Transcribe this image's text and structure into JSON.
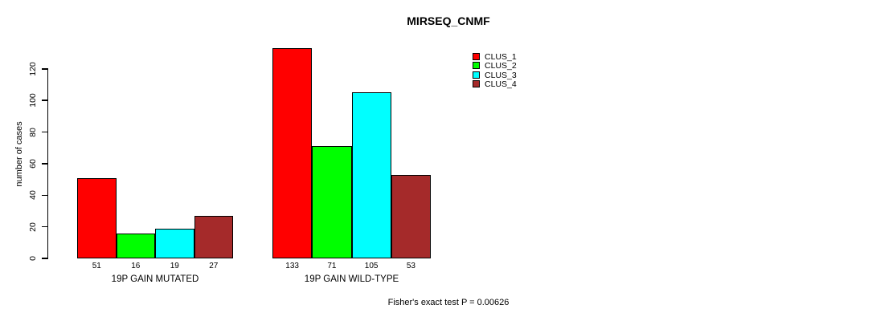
{
  "header": {
    "title": "MIRSEQ_CNMF"
  },
  "chart_data": {
    "type": "bar",
    "title": "MIRSEQ_CNMF",
    "xlabel": "",
    "ylabel": "number of cases",
    "ylim": [
      0,
      140
    ],
    "yticks": [
      0,
      20,
      40,
      60,
      80,
      100,
      120
    ],
    "grid": false,
    "legend_position": "top-right",
    "categories": [
      "19P GAIN MUTATED",
      "19P GAIN WILD-TYPE"
    ],
    "series": [
      {
        "name": "CLUS_1",
        "color": "#FF0000",
        "values": [
          51,
          133
        ]
      },
      {
        "name": "CLUS_2",
        "color": "#00FF00",
        "values": [
          16,
          71
        ]
      },
      {
        "name": "CLUS_3",
        "color": "#00FFFF",
        "values": [
          19,
          105
        ]
      },
      {
        "name": "CLUS_4",
        "color": "#A52A2A",
        "values": [
          27,
          53
        ]
      }
    ],
    "bar_value_labels": {
      "19P GAIN MUTATED": [
        51,
        16,
        19,
        27
      ],
      "19P GAIN WILD-TYPE": [
        133,
        71,
        105,
        53
      ]
    },
    "annotation": "Fisher's exact test P = 0.00626"
  },
  "colors": {
    "background": "#FFFFFF",
    "text": "#000000",
    "axis": "#000000",
    "bar_border": "#000000"
  }
}
